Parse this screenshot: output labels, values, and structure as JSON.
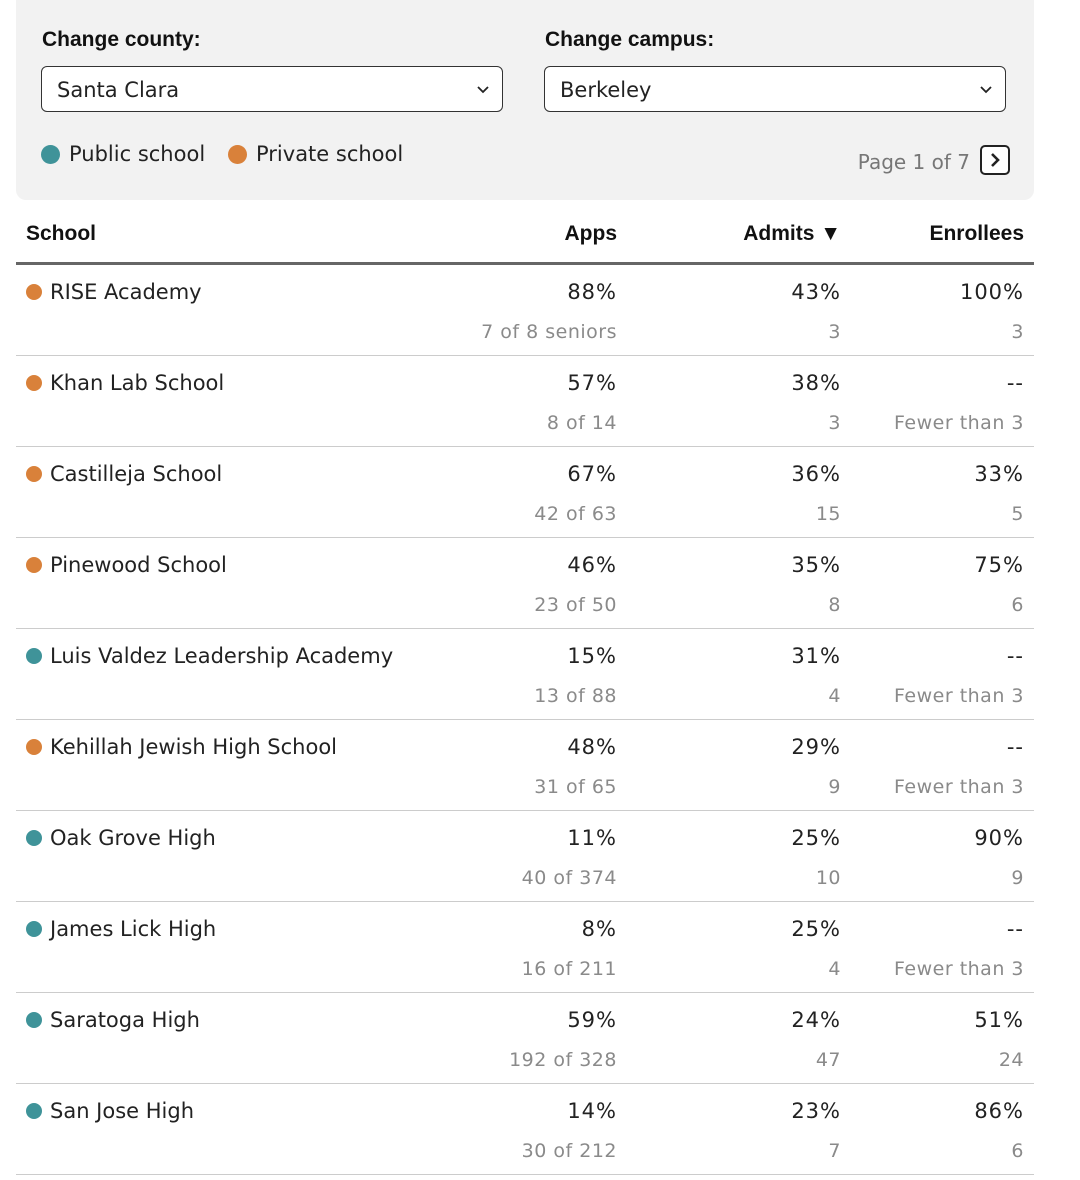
{
  "controls": {
    "county_label": "Change county:",
    "county_value": "Santa Clara",
    "campus_label": "Change campus:",
    "campus_value": "Berkeley",
    "legend": [
      {
        "label": "Public school",
        "color": "#3f9399"
      },
      {
        "label": "Private school",
        "color": "#d9813a"
      }
    ],
    "pager_text": "Page 1 of 7",
    "next_icon": "chevron-right-icon"
  },
  "table": {
    "headers": {
      "school": "School",
      "apps": "Apps",
      "admits": "Admits ▼",
      "enrollees": "Enrollees"
    },
    "rows": [
      {
        "school": "RISE Academy",
        "type": "private",
        "apps_pct": "88%",
        "apps_detail": "7 of 8 seniors",
        "admits_pct": "43%",
        "admits_count": "3",
        "enroll_pct": "100%",
        "enroll_count": "3"
      },
      {
        "school": "Khan Lab School",
        "type": "private",
        "apps_pct": "57%",
        "apps_detail": "8 of 14",
        "admits_pct": "38%",
        "admits_count": "3",
        "enroll_pct": "--",
        "enroll_count": "Fewer than 3"
      },
      {
        "school": "Castilleja School",
        "type": "private",
        "apps_pct": "67%",
        "apps_detail": "42 of 63",
        "admits_pct": "36%",
        "admits_count": "15",
        "enroll_pct": "33%",
        "enroll_count": "5"
      },
      {
        "school": "Pinewood School",
        "type": "private",
        "apps_pct": "46%",
        "apps_detail": "23 of 50",
        "admits_pct": "35%",
        "admits_count": "8",
        "enroll_pct": "75%",
        "enroll_count": "6"
      },
      {
        "school": "Luis Valdez Leadership Academy",
        "type": "public",
        "apps_pct": "15%",
        "apps_detail": "13 of 88",
        "admits_pct": "31%",
        "admits_count": "4",
        "enroll_pct": "--",
        "enroll_count": "Fewer than 3"
      },
      {
        "school": "Kehillah Jewish High School",
        "type": "private",
        "apps_pct": "48%",
        "apps_detail": "31 of 65",
        "admits_pct": "29%",
        "admits_count": "9",
        "enroll_pct": "--",
        "enroll_count": "Fewer than 3"
      },
      {
        "school": "Oak Grove High",
        "type": "public",
        "apps_pct": "11%",
        "apps_detail": "40 of 374",
        "admits_pct": "25%",
        "admits_count": "10",
        "enroll_pct": "90%",
        "enroll_count": "9"
      },
      {
        "school": "James Lick High",
        "type": "public",
        "apps_pct": "8%",
        "apps_detail": "16 of 211",
        "admits_pct": "25%",
        "admits_count": "4",
        "enroll_pct": "--",
        "enroll_count": "Fewer than 3"
      },
      {
        "school": "Saratoga High",
        "type": "public",
        "apps_pct": "59%",
        "apps_detail": "192 of 328",
        "admits_pct": "24%",
        "admits_count": "47",
        "enroll_pct": "51%",
        "enroll_count": "24"
      },
      {
        "school": "San Jose High",
        "type": "public",
        "apps_pct": "14%",
        "apps_detail": "30 of 212",
        "admits_pct": "23%",
        "admits_count": "7",
        "enroll_pct": "86%",
        "enroll_count": "6"
      }
    ]
  },
  "colors": {
    "public": "#3f9399",
    "private": "#d9813a"
  }
}
